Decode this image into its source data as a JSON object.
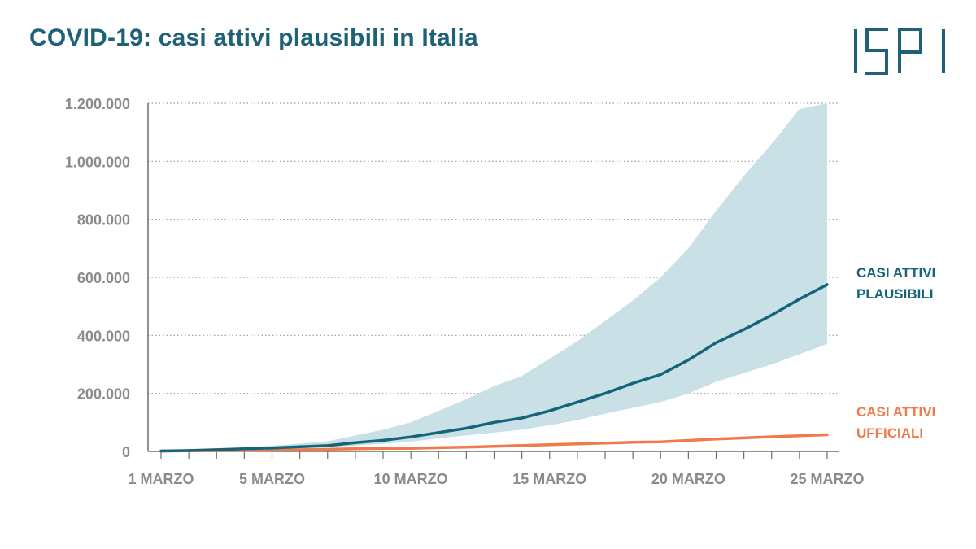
{
  "title": "COVID-19: casi attivi plausibili in Italia",
  "logo": {
    "text": "ISPI",
    "color": "#1f6277"
  },
  "colors": {
    "plausible": "#15647a",
    "band": "#c9e0e6",
    "official": "#f07a4a",
    "grid": "#999999",
    "tick": "#8a8a8a"
  },
  "chart_data": {
    "type": "line",
    "title": "COVID-19: casi attivi plausibili in Italia",
    "xlabel": "",
    "ylabel": "",
    "ylim": [
      0,
      1200000
    ],
    "xlim": [
      1,
      25
    ],
    "y_ticks": [
      0,
      200000,
      400000,
      600000,
      800000,
      1000000,
      1200000
    ],
    "y_tick_labels": [
      "0",
      "200.000",
      "400.000",
      "600.000",
      "800.000",
      "1.000.000",
      "1.200.000"
    ],
    "x_ticks": [
      1,
      5,
      10,
      15,
      20,
      25
    ],
    "x_tick_labels": [
      "1 MARZO",
      "5 MARZO",
      "10 MARZO",
      "15 MARZO",
      "20 MARZO",
      "25 MARZO"
    ],
    "x": [
      1,
      2,
      3,
      4,
      5,
      6,
      7,
      8,
      9,
      10,
      11,
      12,
      13,
      14,
      15,
      16,
      17,
      18,
      19,
      20,
      21,
      22,
      23,
      24,
      25
    ],
    "grid": true,
    "series": [
      {
        "name": "CASI ATTIVI PLAUSIBILI",
        "label_lines": [
          "CASI ATTIVI",
          "PLAUSIBILI"
        ],
        "values": [
          1500,
          3000,
          6000,
          9000,
          12000,
          16000,
          20000,
          30000,
          38000,
          50000,
          65000,
          80000,
          100000,
          115000,
          140000,
          170000,
          200000,
          235000,
          265000,
          315000,
          375000,
          420000,
          470000,
          525000,
          575000
        ],
        "lower": [
          1000,
          2000,
          4000,
          6000,
          8000,
          11000,
          14000,
          20000,
          26000,
          34000,
          45000,
          55000,
          65000,
          75000,
          90000,
          108000,
          130000,
          150000,
          170000,
          200000,
          240000,
          270000,
          300000,
          335000,
          370000
        ],
        "upper": [
          2000,
          4000,
          9000,
          14000,
          20000,
          27000,
          35000,
          55000,
          75000,
          100000,
          140000,
          180000,
          225000,
          260000,
          320000,
          380000,
          450000,
          520000,
          600000,
          700000,
          830000,
          950000,
          1060000,
          1180000,
          1200000
        ]
      },
      {
        "name": "CASI ATTIVI UFFICIALI",
        "label_lines": [
          "CASI ATTIVI",
          "UFFICIALI"
        ],
        "values": [
          1500,
          1900,
          2500,
          3300,
          4600,
          5900,
          7400,
          9200,
          10600,
          10600,
          12800,
          14900,
          17700,
          20600,
          23100,
          26100,
          28700,
          31500,
          33200,
          37900,
          42700,
          46600,
          50400,
          54000,
          57500
        ]
      }
    ]
  }
}
